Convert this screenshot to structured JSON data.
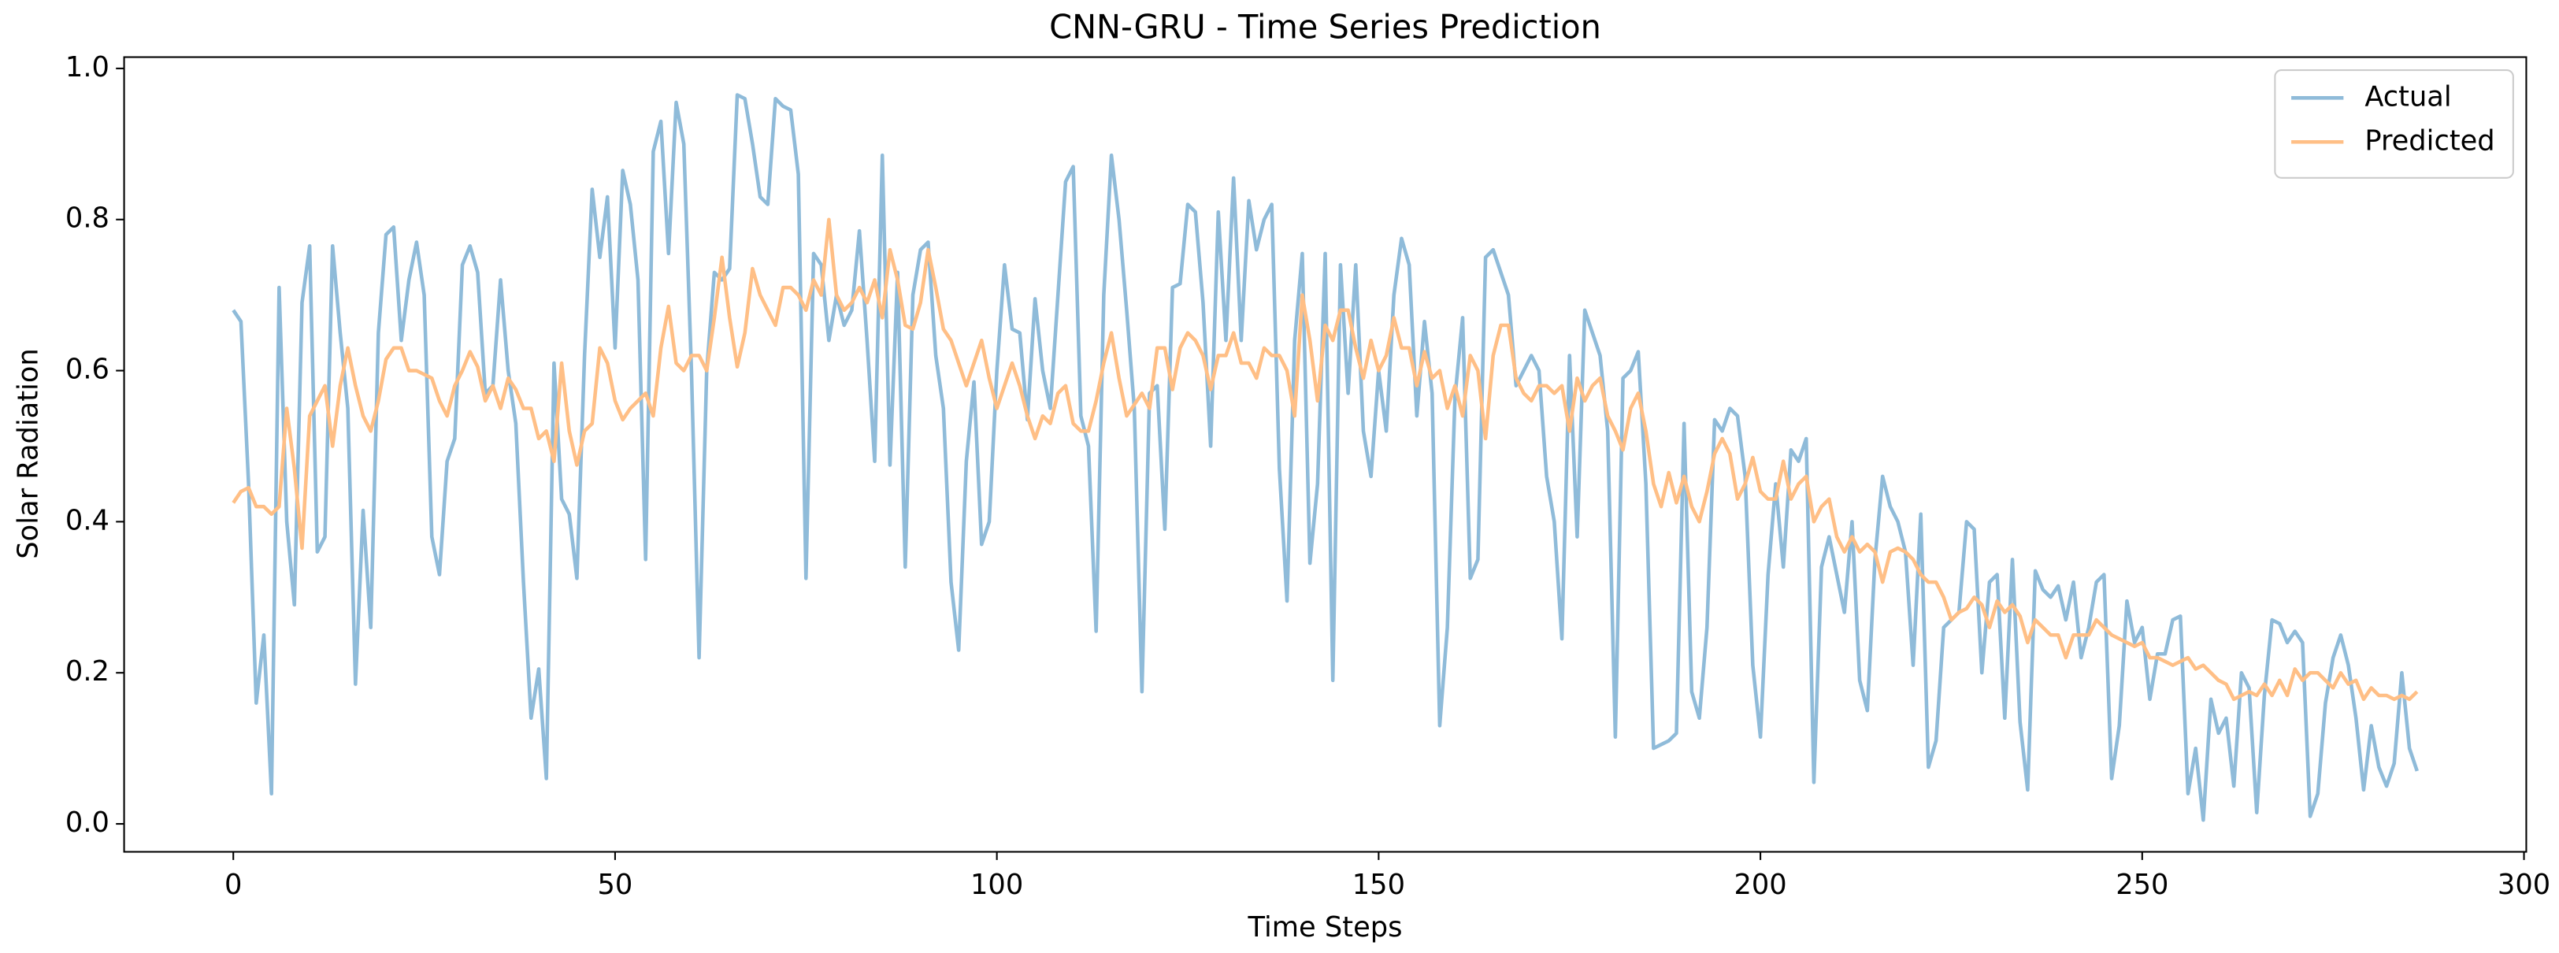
{
  "chart_data": {
    "type": "line",
    "title": "CNN-GRU - Time Series Prediction",
    "x_label": "Time Steps",
    "y_label": "Solar Radiation",
    "x": [
      0,
      1,
      2,
      3,
      4,
      5,
      6,
      7,
      8,
      9,
      10,
      11,
      12,
      13,
      14,
      15,
      16,
      17,
      18,
      19,
      20,
      21,
      22,
      23,
      24,
      25,
      26,
      27,
      28,
      29,
      30,
      31,
      32,
      33,
      34,
      35,
      36,
      37,
      38,
      39,
      40,
      41,
      42,
      43,
      44,
      45,
      46,
      47,
      48,
      49,
      50,
      51,
      52,
      53,
      54,
      55,
      56,
      57,
      58,
      59,
      60,
      61,
      62,
      63,
      64,
      65,
      66,
      67,
      68,
      69,
      70,
      71,
      72,
      73,
      74,
      75,
      76,
      77,
      78,
      79,
      80,
      81,
      82,
      83,
      84,
      85,
      86,
      87,
      88,
      89,
      90,
      91,
      92,
      93,
      94,
      95,
      96,
      97,
      98,
      99,
      100,
      101,
      102,
      103,
      104,
      105,
      106,
      107,
      108,
      109,
      110,
      111,
      112,
      113,
      114,
      115,
      116,
      117,
      118,
      119,
      120,
      121,
      122,
      123,
      124,
      125,
      126,
      127,
      128,
      129,
      130,
      131,
      132,
      133,
      134,
      135,
      136,
      137,
      138,
      139,
      140,
      141,
      142,
      143,
      144,
      145,
      146,
      147,
      148,
      149,
      150,
      151,
      152,
      153,
      154,
      155,
      156,
      157,
      158,
      159,
      160,
      161,
      162,
      163,
      164,
      165,
      166,
      167,
      168,
      169,
      170,
      171,
      172,
      173,
      174,
      175,
      176,
      177,
      178,
      179,
      180,
      181,
      182,
      183,
      184,
      185,
      186,
      187,
      188,
      189,
      190,
      191,
      192,
      193,
      194,
      195,
      196,
      197,
      198,
      199,
      200,
      201,
      202,
      203,
      204,
      205,
      206,
      207,
      208,
      209,
      210,
      211,
      212,
      213,
      214,
      215,
      216,
      217,
      218,
      219,
      220,
      221,
      222,
      223,
      224,
      225,
      226,
      227,
      228,
      229,
      230,
      231,
      232,
      233,
      234,
      235,
      236,
      237,
      238,
      239,
      240,
      241,
      242,
      243,
      244,
      245,
      246,
      247,
      248,
      249,
      250,
      251,
      252,
      253,
      254,
      255,
      256,
      257,
      258,
      259,
      260,
      261,
      262,
      263,
      264,
      265,
      266,
      267,
      268,
      269,
      270,
      271,
      272,
      273,
      274,
      275,
      276,
      277,
      278,
      279,
      280,
      281,
      282,
      283,
      284,
      285,
      286
    ],
    "series": [
      {
        "name": "Actual",
        "color": "#8fbbd9",
        "values": [
          0.68,
          0.665,
          0.45,
          0.16,
          0.25,
          0.04,
          0.71,
          0.4,
          0.29,
          0.69,
          0.765,
          0.36,
          0.38,
          0.765,
          0.65,
          0.55,
          0.185,
          0.415,
          0.26,
          0.65,
          0.78,
          0.79,
          0.64,
          0.72,
          0.77,
          0.7,
          0.38,
          0.33,
          0.48,
          0.51,
          0.74,
          0.765,
          0.73,
          0.57,
          0.58,
          0.72,
          0.6,
          0.53,
          0.32,
          0.14,
          0.205,
          0.06,
          0.61,
          0.43,
          0.41,
          0.325,
          0.62,
          0.84,
          0.75,
          0.83,
          0.63,
          0.865,
          0.82,
          0.72,
          0.35,
          0.89,
          0.93,
          0.755,
          0.955,
          0.9,
          0.6,
          0.22,
          0.6,
          0.73,
          0.72,
          0.735,
          0.965,
          0.96,
          0.9,
          0.83,
          0.82,
          0.96,
          0.95,
          0.945,
          0.86,
          0.325,
          0.755,
          0.74,
          0.64,
          0.7,
          0.66,
          0.68,
          0.785,
          0.64,
          0.48,
          0.885,
          0.475,
          0.73,
          0.34,
          0.7,
          0.76,
          0.77,
          0.62,
          0.55,
          0.32,
          0.23,
          0.48,
          0.585,
          0.37,
          0.4,
          0.6,
          0.74,
          0.655,
          0.65,
          0.535,
          0.695,
          0.6,
          0.55,
          0.7,
          0.85,
          0.87,
          0.54,
          0.5,
          0.255,
          0.7,
          0.885,
          0.8,
          0.68,
          0.55,
          0.175,
          0.57,
          0.58,
          0.39,
          0.71,
          0.715,
          0.82,
          0.81,
          0.69,
          0.5,
          0.81,
          0.64,
          0.855,
          0.64,
          0.825,
          0.76,
          0.8,
          0.82,
          0.47,
          0.295,
          0.64,
          0.755,
          0.345,
          0.45,
          0.755,
          0.19,
          0.74,
          0.57,
          0.74,
          0.52,
          0.46,
          0.6,
          0.52,
          0.7,
          0.775,
          0.74,
          0.54,
          0.665,
          0.57,
          0.13,
          0.26,
          0.565,
          0.67,
          0.325,
          0.35,
          0.75,
          0.76,
          0.73,
          0.7,
          0.58,
          0.6,
          0.62,
          0.6,
          0.46,
          0.4,
          0.245,
          0.62,
          0.38,
          0.68,
          0.65,
          0.62,
          0.52,
          0.115,
          0.59,
          0.6,
          0.625,
          0.45,
          0.1,
          0.105,
          0.11,
          0.12,
          0.53,
          0.175,
          0.14,
          0.26,
          0.535,
          0.52,
          0.55,
          0.54,
          0.46,
          0.21,
          0.115,
          0.33,
          0.45,
          0.34,
          0.495,
          0.48,
          0.51,
          0.055,
          0.34,
          0.38,
          0.33,
          0.28,
          0.4,
          0.19,
          0.15,
          0.35,
          0.46,
          0.42,
          0.4,
          0.36,
          0.21,
          0.41,
          0.075,
          0.11,
          0.26,
          0.27,
          0.28,
          0.4,
          0.39,
          0.2,
          0.32,
          0.33,
          0.14,
          0.35,
          0.135,
          0.045,
          0.335,
          0.31,
          0.3,
          0.315,
          0.27,
          0.32,
          0.22,
          0.26,
          0.32,
          0.33,
          0.06,
          0.13,
          0.295,
          0.24,
          0.26,
          0.165,
          0.225,
          0.225,
          0.27,
          0.275,
          0.04,
          0.1,
          0.005,
          0.165,
          0.12,
          0.14,
          0.05,
          0.2,
          0.18,
          0.015,
          0.17,
          0.27,
          0.265,
          0.24,
          0.255,
          0.24,
          0.01,
          0.04,
          0.16,
          0.22,
          0.25,
          0.21,
          0.14,
          0.045,
          0.13,
          0.075,
          0.05,
          0.08,
          0.2,
          0.1,
          0.07
        ]
      },
      {
        "name": "Predicted",
        "color": "#ffbf86",
        "values": [
          0.425,
          0.44,
          0.445,
          0.42,
          0.42,
          0.41,
          0.42,
          0.55,
          0.47,
          0.365,
          0.54,
          0.56,
          0.58,
          0.5,
          0.58,
          0.63,
          0.58,
          0.54,
          0.52,
          0.56,
          0.615,
          0.63,
          0.63,
          0.6,
          0.6,
          0.595,
          0.59,
          0.56,
          0.54,
          0.58,
          0.6,
          0.625,
          0.605,
          0.56,
          0.58,
          0.55,
          0.59,
          0.575,
          0.55,
          0.55,
          0.51,
          0.52,
          0.48,
          0.61,
          0.52,
          0.475,
          0.52,
          0.53,
          0.63,
          0.61,
          0.56,
          0.535,
          0.55,
          0.56,
          0.57,
          0.54,
          0.63,
          0.685,
          0.61,
          0.6,
          0.62,
          0.62,
          0.6,
          0.67,
          0.75,
          0.67,
          0.605,
          0.65,
          0.735,
          0.7,
          0.68,
          0.66,
          0.71,
          0.71,
          0.7,
          0.68,
          0.72,
          0.7,
          0.8,
          0.7,
          0.68,
          0.69,
          0.71,
          0.69,
          0.72,
          0.67,
          0.76,
          0.72,
          0.66,
          0.655,
          0.69,
          0.76,
          0.71,
          0.655,
          0.64,
          0.61,
          0.58,
          0.61,
          0.64,
          0.59,
          0.55,
          0.58,
          0.61,
          0.58,
          0.54,
          0.51,
          0.54,
          0.53,
          0.57,
          0.58,
          0.53,
          0.52,
          0.52,
          0.56,
          0.61,
          0.65,
          0.59,
          0.54,
          0.555,
          0.57,
          0.55,
          0.63,
          0.63,
          0.575,
          0.63,
          0.65,
          0.64,
          0.62,
          0.575,
          0.62,
          0.62,
          0.65,
          0.61,
          0.61,
          0.59,
          0.63,
          0.62,
          0.62,
          0.6,
          0.54,
          0.7,
          0.64,
          0.56,
          0.66,
          0.64,
          0.68,
          0.68,
          0.63,
          0.59,
          0.64,
          0.6,
          0.62,
          0.67,
          0.63,
          0.63,
          0.58,
          0.625,
          0.59,
          0.6,
          0.55,
          0.58,
          0.54,
          0.62,
          0.6,
          0.51,
          0.62,
          0.66,
          0.66,
          0.59,
          0.57,
          0.56,
          0.58,
          0.58,
          0.57,
          0.58,
          0.52,
          0.59,
          0.56,
          0.58,
          0.59,
          0.54,
          0.52,
          0.495,
          0.55,
          0.57,
          0.52,
          0.45,
          0.42,
          0.465,
          0.425,
          0.46,
          0.42,
          0.4,
          0.44,
          0.49,
          0.51,
          0.49,
          0.43,
          0.45,
          0.485,
          0.44,
          0.43,
          0.43,
          0.48,
          0.43,
          0.45,
          0.46,
          0.4,
          0.42,
          0.43,
          0.38,
          0.36,
          0.38,
          0.36,
          0.37,
          0.36,
          0.32,
          0.36,
          0.365,
          0.36,
          0.35,
          0.33,
          0.32,
          0.32,
          0.3,
          0.27,
          0.28,
          0.285,
          0.3,
          0.29,
          0.26,
          0.295,
          0.28,
          0.29,
          0.275,
          0.24,
          0.27,
          0.26,
          0.25,
          0.25,
          0.22,
          0.25,
          0.25,
          0.25,
          0.27,
          0.26,
          0.25,
          0.245,
          0.24,
          0.235,
          0.24,
          0.22,
          0.22,
          0.215,
          0.21,
          0.215,
          0.22,
          0.205,
          0.21,
          0.2,
          0.19,
          0.185,
          0.165,
          0.17,
          0.175,
          0.17,
          0.185,
          0.17,
          0.19,
          0.17,
          0.205,
          0.19,
          0.2,
          0.2,
          0.19,
          0.18,
          0.2,
          0.185,
          0.19,
          0.165,
          0.18,
          0.17,
          0.17,
          0.165,
          0.17,
          0.165,
          0.175
        ]
      }
    ],
    "xlim": [
      -14.3,
      300.3
    ],
    "xticks": [
      0,
      50,
      100,
      150,
      200,
      250,
      300
    ],
    "ylim": [
      -0.037,
      1.015
    ],
    "yticks": [
      {
        "value": 0,
        "label": "0.0"
      },
      0.2,
      0.4,
      0.6,
      0.8,
      {
        "value": 1,
        "label": "1.0"
      }
    ],
    "legend": "upper right"
  }
}
